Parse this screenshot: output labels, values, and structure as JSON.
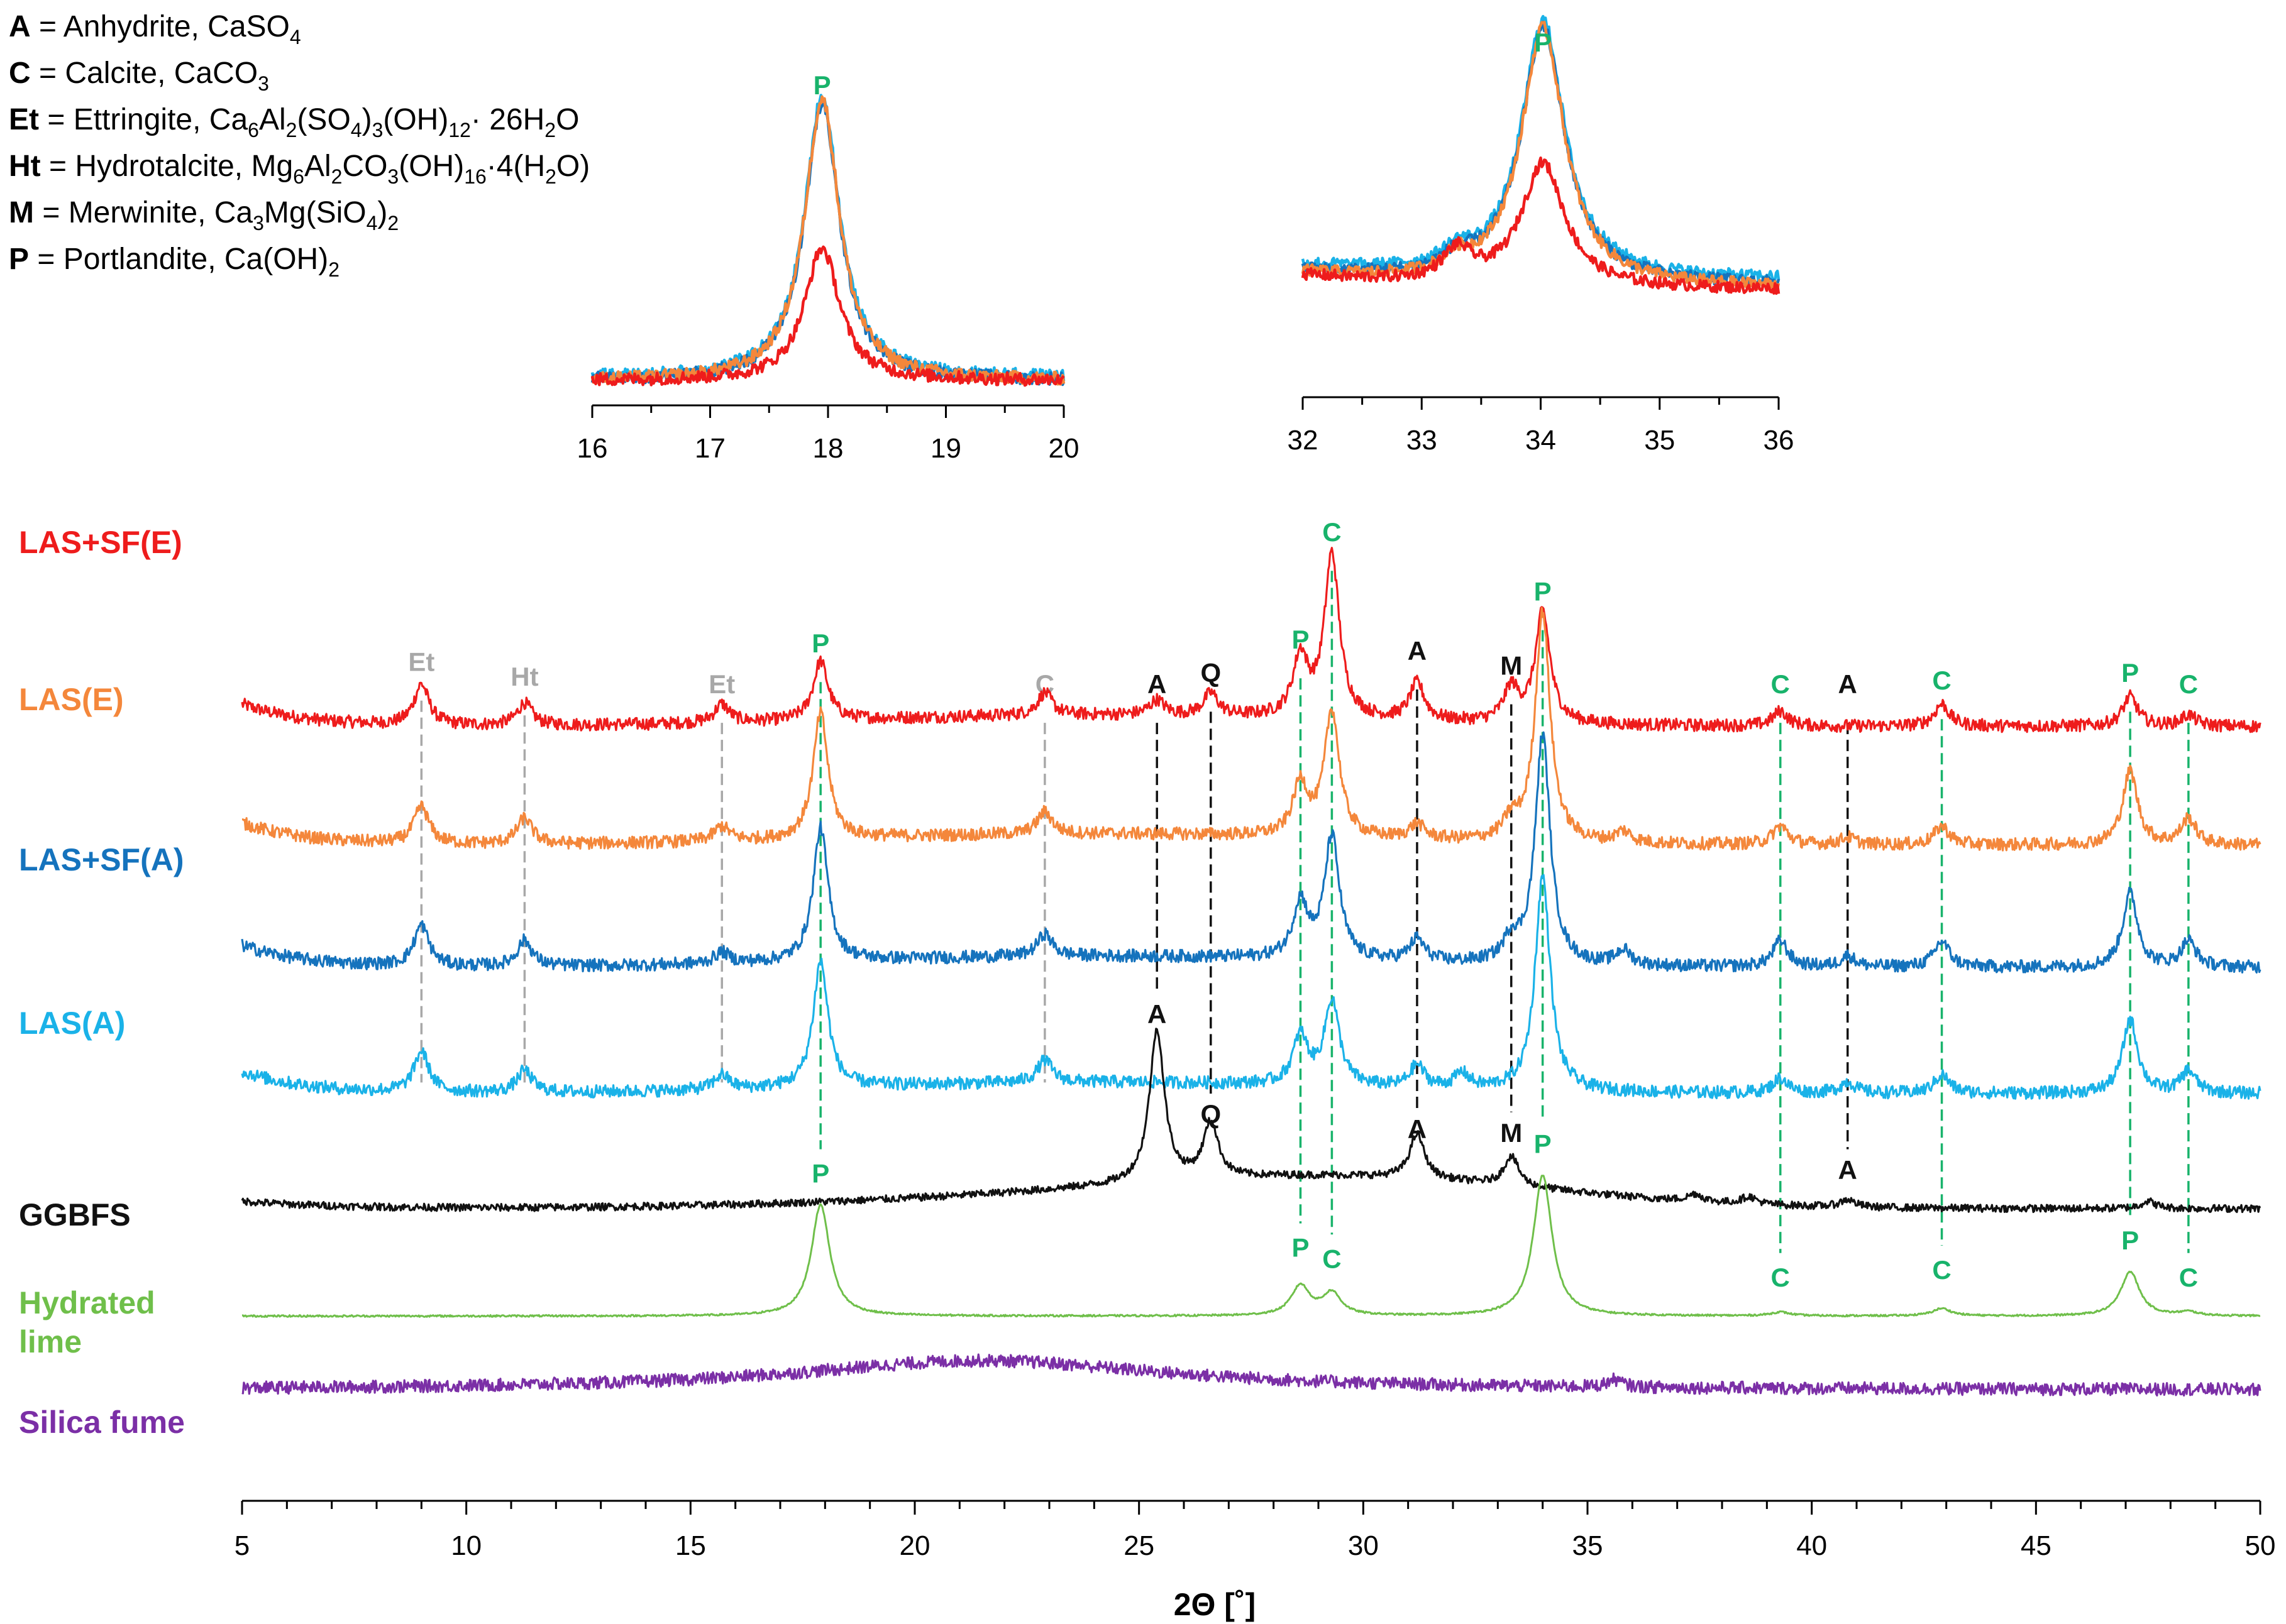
{
  "chart_data": {
    "type": "line",
    "title": "",
    "xlabel": "2Θ [˚]",
    "ylabel": "",
    "xlim": [
      5,
      50
    ],
    "xticks": [
      5,
      10,
      15,
      20,
      25,
      30,
      35,
      40,
      45,
      50
    ],
    "legend": [
      {
        "code": "A",
        "text": " = Anhydrite, CaSO",
        "sub": "4"
      },
      {
        "code": "C",
        "text": " = Calcite, CaCO",
        "sub": "3"
      },
      {
        "code": "Et",
        "text": " = Ettringite, Ca6Al2(SO4)3(OH)12· 26H2O"
      },
      {
        "code": "Ht",
        "text": " = Hydrotalcite, Mg6Al2CO3(OH)16·4(H2O)"
      },
      {
        "code": "M",
        "text": " = Merwinite, Ca3Mg(SiO4)2"
      },
      {
        "code": "P",
        "text": " = Portlandite, Ca(OH)",
        "sub": "2"
      }
    ],
    "colors": {
      "LAS+SF(E)": "#ee1c1c",
      "LAS(E)": "#f4873b",
      "LAS+SF(A)": "#1573bd",
      "LAS(A)": "#1ab2e8",
      "GGBFS": "#111111",
      "Hydrated lime": "#6fbf4a",
      "Silica fume": "#7b2fa6",
      "C_and_P_markers": "#18b36b",
      "Et_Ht_markers": "#a8a8a8"
    },
    "series": [
      {
        "name": "LAS+SF(E)",
        "label": "LAS+SF(E)",
        "label_lines": [
          "LAS+SF(E)"
        ],
        "baseline": 6.5,
        "peaks": [
          [
            9.0,
            0.55
          ],
          [
            11.3,
            0.3
          ],
          [
            15.7,
            0.25
          ],
          [
            17.9,
            0.8
          ],
          [
            22.9,
            0.3
          ],
          [
            25.4,
            0.2
          ],
          [
            26.6,
            0.3
          ],
          [
            28.6,
            0.8
          ],
          [
            29.3,
            2.2
          ],
          [
            31.2,
            0.5
          ],
          [
            33.3,
            0.45
          ],
          [
            34.0,
            1.5
          ],
          [
            39.3,
            0.2
          ],
          [
            42.9,
            0.3
          ],
          [
            47.1,
            0.4
          ],
          [
            48.4,
            0.15
          ]
        ]
      },
      {
        "name": "LAS(E)",
        "label": "LAS(E)",
        "label_lines": [
          "LAS(E)"
        ],
        "baseline": 4.9,
        "peaks": [
          [
            9.0,
            0.5
          ],
          [
            11.3,
            0.35
          ],
          [
            15.7,
            0.2
          ],
          [
            17.9,
            1.7
          ],
          [
            22.9,
            0.3
          ],
          [
            28.6,
            0.7
          ],
          [
            29.3,
            1.7
          ],
          [
            31.2,
            0.2
          ],
          [
            33.3,
            0.25
          ],
          [
            34.0,
            3.1
          ],
          [
            35.8,
            0.15
          ],
          [
            39.3,
            0.25
          ],
          [
            40.8,
            0.1
          ],
          [
            42.9,
            0.25
          ],
          [
            47.1,
            1.0
          ],
          [
            48.4,
            0.35
          ]
        ]
      },
      {
        "name": "LAS+SF(A)",
        "label": "LAS+SF(A)",
        "label_lines": [
          "LAS+SF(A)"
        ],
        "baseline": 3.25,
        "peaks": [
          [
            9.0,
            0.55
          ],
          [
            11.3,
            0.35
          ],
          [
            15.7,
            0.15
          ],
          [
            17.9,
            1.8
          ],
          [
            22.9,
            0.3
          ],
          [
            28.6,
            0.75
          ],
          [
            29.3,
            1.65
          ],
          [
            31.2,
            0.3
          ],
          [
            33.3,
            0.3
          ],
          [
            34.0,
            3.1
          ],
          [
            35.8,
            0.2
          ],
          [
            39.3,
            0.35
          ],
          [
            40.8,
            0.15
          ],
          [
            42.9,
            0.35
          ],
          [
            47.1,
            1.0
          ],
          [
            48.4,
            0.35
          ]
        ]
      },
      {
        "name": "LAS(A)",
        "label": "LAS(A)",
        "label_lines": [
          "LAS(A)"
        ],
        "baseline": 1.55,
        "peaks": [
          [
            9.0,
            0.55
          ],
          [
            11.3,
            0.3
          ],
          [
            15.7,
            0.2
          ],
          [
            17.9,
            1.7
          ],
          [
            22.9,
            0.3
          ],
          [
            28.6,
            0.65
          ],
          [
            29.3,
            1.15
          ],
          [
            31.2,
            0.3
          ],
          [
            32.2,
            0.2
          ],
          [
            34.0,
            2.9
          ],
          [
            39.3,
            0.2
          ],
          [
            40.8,
            0.15
          ],
          [
            42.9,
            0.25
          ],
          [
            47.1,
            1.0
          ],
          [
            48.4,
            0.3
          ]
        ]
      },
      {
        "name": "GGBFS",
        "label": "GGBFS",
        "label_lines": [
          "GGBFS"
        ],
        "baseline": 0.0,
        "peaks": [
          [
            25.4,
            2.05
          ],
          [
            26.6,
            0.75
          ],
          [
            31.2,
            0.6
          ],
          [
            33.3,
            0.4
          ],
          [
            37.4,
            0.1
          ],
          [
            38.6,
            0.1
          ],
          [
            40.8,
            0.1
          ],
          [
            47.5,
            0.1
          ]
        ]
      },
      {
        "name": "Hydrated lime",
        "label": "Hydrated lime",
        "label_lines": [
          "Hydrated",
          "lime"
        ],
        "baseline": -1.45,
        "peaks": [
          [
            17.9,
            1.5
          ],
          [
            28.6,
            0.4
          ],
          [
            29.3,
            0.3
          ],
          [
            34.0,
            1.9
          ],
          [
            39.3,
            0.05
          ],
          [
            42.9,
            0.1
          ],
          [
            47.1,
            0.6
          ],
          [
            48.4,
            0.05
          ]
        ]
      },
      {
        "name": "Silica fume",
        "label": "Silica fume",
        "label_lines": [
          "Silica fume"
        ],
        "baseline": -2.45,
        "peaks": [
          [
            21.5,
            0.4
          ],
          [
            35.6,
            0.1
          ]
        ]
      }
    ],
    "phase_markers": [
      {
        "label": "Et",
        "x": 9.0,
        "class": "gray",
        "y": 7.25
      },
      {
        "label": "Ht",
        "x": 11.3,
        "class": "gray",
        "y": 7.05
      },
      {
        "label": "Et",
        "x": 15.7,
        "class": "gray",
        "y": 6.95
      },
      {
        "label": "P",
        "x": 17.9,
        "class": "green",
        "y": 7.5
      },
      {
        "label": "C",
        "x": 22.9,
        "class": "gray",
        "y": 6.95
      },
      {
        "label": "A",
        "x": 25.4,
        "class": "black",
        "y": 6.95
      },
      {
        "label": "Q",
        "x": 26.6,
        "class": "black",
        "y": 7.1
      },
      {
        "label": "P",
        "x": 28.6,
        "class": "green",
        "y": 7.55
      },
      {
        "label": "C",
        "x": 29.3,
        "class": "green",
        "y": 9.0
      },
      {
        "label": "A",
        "x": 31.2,
        "class": "black",
        "y": 7.4
      },
      {
        "label": "M",
        "x": 33.3,
        "class": "black",
        "y": 7.2
      },
      {
        "label": "P",
        "x": 34.0,
        "class": "green",
        "y": 8.2
      },
      {
        "label": "C",
        "x": 39.3,
        "class": "green",
        "y": 6.95
      },
      {
        "label": "A",
        "x": 40.8,
        "class": "black",
        "y": 6.95
      },
      {
        "label": "C",
        "x": 42.9,
        "class": "green",
        "y": 7.0
      },
      {
        "label": "P",
        "x": 47.1,
        "class": "green",
        "y": 7.1
      },
      {
        "label": "C",
        "x": 48.4,
        "class": "green",
        "y": 6.95
      }
    ],
    "ggbfs_markers": [
      {
        "label": "A",
        "x": 25.4,
        "y": 2.5
      },
      {
        "label": "Q",
        "x": 26.6,
        "y": 1.15
      },
      {
        "label": "A",
        "x": 31.2,
        "y": 0.95
      },
      {
        "label": "M",
        "x": 33.3,
        "y": 0.9
      },
      {
        "label": "A",
        "x": 40.8,
        "y": 0.4
      }
    ],
    "lime_markers": [
      {
        "label": "P",
        "x": 17.9,
        "y": 0.35
      },
      {
        "label": "P",
        "x": 28.6,
        "y": -0.65
      },
      {
        "label": "C",
        "x": 29.3,
        "y": -0.8
      },
      {
        "label": "P",
        "x": 34.0,
        "y": 0.75
      },
      {
        "label": "C",
        "x": 39.3,
        "y": -1.05
      },
      {
        "label": "C",
        "x": 42.9,
        "y": -0.95
      },
      {
        "label": "P",
        "x": 47.1,
        "y": -0.55
      },
      {
        "label": "C",
        "x": 48.4,
        "y": -1.05
      }
    ],
    "insets": [
      {
        "name": "inset-1",
        "xlim": [
          16,
          20
        ],
        "xticks": [
          16,
          17,
          18,
          19,
          20
        ],
        "peak_x": 17.95,
        "peak_label": "P",
        "series": [
          {
            "name": "LAS(A)",
            "height": 1.0,
            "baseline": 0.06
          },
          {
            "name": "LAS+SF(A)",
            "height": 0.98,
            "baseline": 0.05
          },
          {
            "name": "LAS(E)",
            "height": 1.0,
            "baseline": 0.05
          },
          {
            "name": "LAS+SF(E)",
            "height": 0.47,
            "baseline": 0.05
          }
        ]
      },
      {
        "name": "inset-2",
        "xlim": [
          32,
          36
        ],
        "xticks": [
          32,
          33,
          34,
          35,
          36
        ],
        "peak_x": 34.02,
        "peak_label": "P",
        "series": [
          {
            "name": "LAS(A)",
            "height": 1.0,
            "baseline": 0.18
          },
          {
            "name": "LAS+SF(A)",
            "height": 0.99,
            "baseline": 0.16
          },
          {
            "name": "LAS(E)",
            "height": 1.0,
            "baseline": 0.15
          },
          {
            "name": "LAS+SF(E)",
            "height": 0.48,
            "baseline": 0.14
          }
        ]
      }
    ]
  }
}
